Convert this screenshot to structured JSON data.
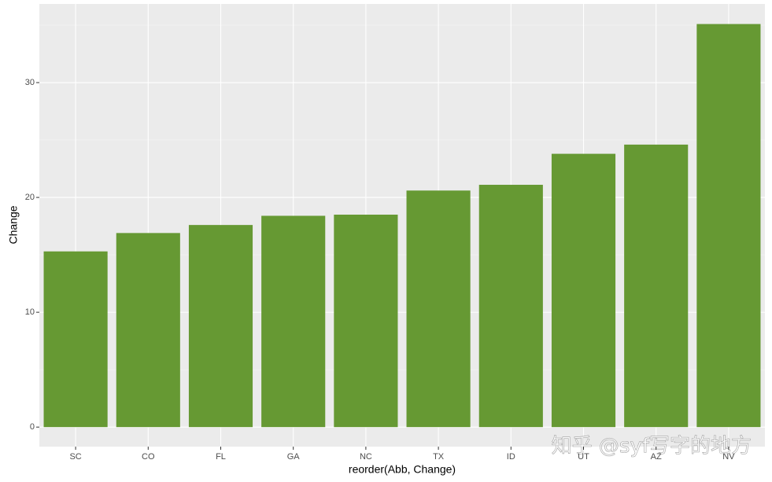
{
  "chart_data": {
    "type": "bar",
    "categories": [
      "SC",
      "CO",
      "FL",
      "GA",
      "NC",
      "TX",
      "ID",
      "UT",
      "AZ",
      "NV"
    ],
    "values": [
      15.3,
      16.9,
      17.6,
      18.4,
      18.5,
      20.6,
      21.1,
      23.8,
      24.6,
      35.1
    ],
    "color": "#669933",
    "x_label": "reorder(Abb, Change)",
    "y_label": "Change",
    "ylim": [
      -1.7,
      36.85
    ],
    "yticks": [
      0,
      10,
      20,
      30
    ],
    "minor_yticks": [
      5,
      15,
      25,
      35
    ],
    "grid": true,
    "watermark": "知乎 @syf写字的地方"
  }
}
